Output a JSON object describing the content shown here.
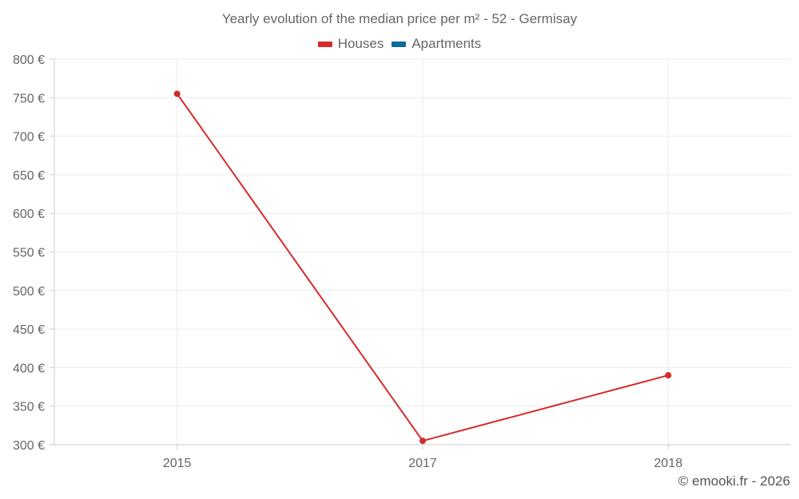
{
  "chart_data": {
    "type": "line",
    "title": "Yearly evolution of the median price per m² - 52 - Germisay",
    "categories": [
      "2015",
      "2017",
      "2018"
    ],
    "series": [
      {
        "name": "Houses",
        "color": "#d62a2a",
        "values": [
          755,
          305,
          390
        ]
      },
      {
        "name": "Apartments",
        "color": "#0e6a9a",
        "values": [
          null,
          null,
          null
        ]
      }
    ],
    "ylim": [
      300,
      800
    ],
    "yticks": [
      300,
      350,
      400,
      450,
      500,
      550,
      600,
      650,
      700,
      750,
      800
    ],
    "ytick_suffix": " €",
    "xlabel": "",
    "ylabel": "",
    "grid": true,
    "legend_position": "top-center"
  },
  "footer": {
    "credit": "© emooki.fr - 2026"
  }
}
